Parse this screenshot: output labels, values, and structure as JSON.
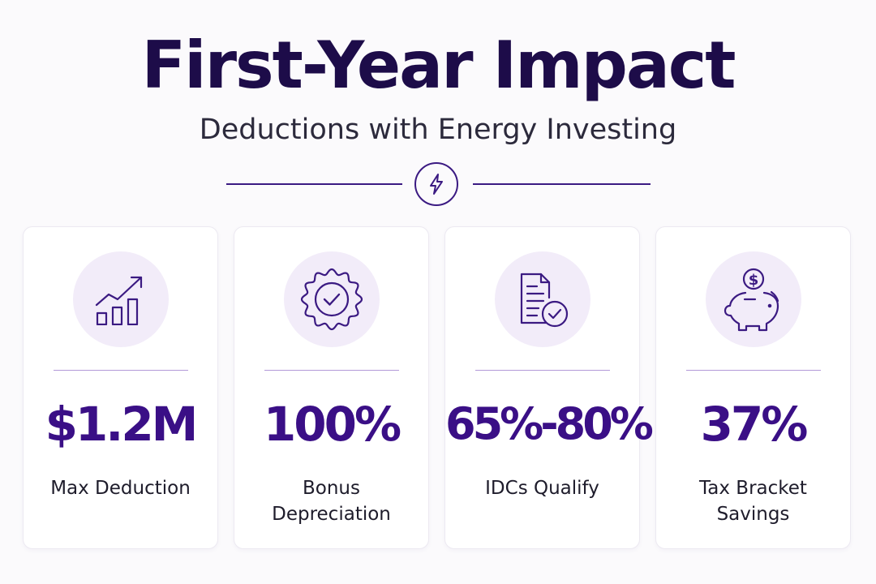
{
  "header": {
    "title": "First-Year Impact",
    "subtitle": "Deductions with Energy Investing",
    "divider_icon": "lightning-bolt-icon"
  },
  "colors": {
    "title": "#1d0c49",
    "accent": "#3a0f86",
    "icon_background": "#f2ecf9",
    "card_background": "#ffffff",
    "page_background": "#fbfafc"
  },
  "cards": [
    {
      "icon": "growth-chart-icon",
      "value": "$1.2M",
      "label": "Max Deduction"
    },
    {
      "icon": "badge-check-icon",
      "value": "100%",
      "label": "Bonus Depreciation"
    },
    {
      "icon": "document-check-icon",
      "value": "65%-80%",
      "label": "IDCs Qualify"
    },
    {
      "icon": "piggy-bank-icon",
      "value": "37%",
      "label": "Tax Bracket Savings"
    }
  ]
}
